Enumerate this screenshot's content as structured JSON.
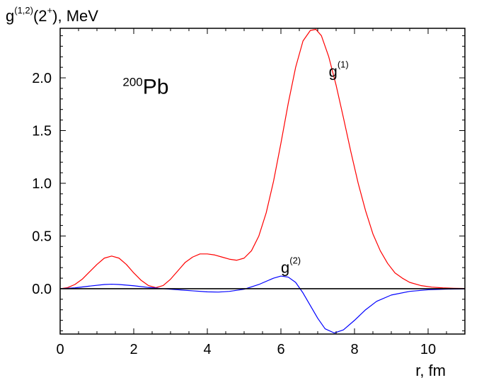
{
  "chart_data": {
    "type": "line",
    "ylabel": {
      "base": "g",
      "sup": "(1,2)",
      "mid": "(2",
      "sup2": "+",
      "tail": "), MeV"
    },
    "xlabel": "r, fm",
    "xlim": [
      0,
      11
    ],
    "ylim": [
      -0.43,
      2.47
    ],
    "x_ticks": [
      0,
      2,
      4,
      6,
      8,
      10
    ],
    "x_tick_labels": [
      "0",
      "2",
      "4",
      "6",
      "8",
      "10"
    ],
    "y_ticks": [
      0.0,
      0.5,
      1.0,
      1.5,
      2.0
    ],
    "y_tick_labels": [
      "0.0",
      "0.5",
      "1.0",
      "1.5",
      "2.0"
    ],
    "x_minor_step": 0.5,
    "y_minor_step": 0.1,
    "grid": false,
    "annotations": [
      {
        "id": "nucleus",
        "sup": "200",
        "text": "Pb",
        "x": 1.7,
        "y": 1.85
      },
      {
        "id": "g1-label",
        "text": "g",
        "sup": "(1)",
        "x": 7.3,
        "y": 2.01
      },
      {
        "id": "g2-label",
        "text": "g",
        "sup": "(2)",
        "x": 6.0,
        "y": 0.15
      }
    ],
    "series": [
      {
        "id": "g1",
        "color": "#ff0000",
        "x": [
          0,
          0.2,
          0.4,
          0.6,
          0.8,
          1.0,
          1.2,
          1.4,
          1.6,
          1.8,
          2.0,
          2.2,
          2.4,
          2.6,
          2.8,
          3.0,
          3.2,
          3.4,
          3.6,
          3.8,
          4.0,
          4.2,
          4.4,
          4.6,
          4.8,
          5.0,
          5.2,
          5.4,
          5.6,
          5.8,
          6.0,
          6.2,
          6.4,
          6.6,
          6.8,
          6.95,
          7.1,
          7.3,
          7.5,
          7.7,
          7.9,
          8.1,
          8.3,
          8.5,
          8.7,
          8.9,
          9.1,
          9.3,
          9.5,
          9.8,
          10.1,
          10.4,
          10.7,
          11.0
        ],
        "y": [
          0.0,
          0.01,
          0.04,
          0.09,
          0.16,
          0.23,
          0.29,
          0.31,
          0.29,
          0.23,
          0.15,
          0.08,
          0.03,
          0.01,
          0.03,
          0.09,
          0.17,
          0.25,
          0.3,
          0.33,
          0.33,
          0.32,
          0.3,
          0.28,
          0.27,
          0.29,
          0.36,
          0.5,
          0.72,
          1.02,
          1.38,
          1.76,
          2.1,
          2.35,
          2.45,
          2.46,
          2.4,
          2.2,
          1.93,
          1.62,
          1.3,
          1.0,
          0.74,
          0.52,
          0.36,
          0.24,
          0.15,
          0.1,
          0.06,
          0.03,
          0.015,
          0.008,
          0.004,
          0.002
        ]
      },
      {
        "id": "g2",
        "color": "#0000ff",
        "x": [
          0,
          0.4,
          0.8,
          1.2,
          1.4,
          1.6,
          2.0,
          2.4,
          2.8,
          3.2,
          3.6,
          4.0,
          4.3,
          4.6,
          5.0,
          5.4,
          5.8,
          6.0,
          6.2,
          6.4,
          6.6,
          6.8,
          7.0,
          7.2,
          7.45,
          7.7,
          8.0,
          8.3,
          8.6,
          9.0,
          9.5,
          10.0,
          10.5,
          11.0
        ],
        "y": [
          0.0,
          0.008,
          0.025,
          0.04,
          0.043,
          0.04,
          0.028,
          0.012,
          0.0,
          -0.01,
          -0.02,
          -0.03,
          -0.032,
          -0.025,
          -0.005,
          0.04,
          0.1,
          0.12,
          0.11,
          0.06,
          -0.04,
          -0.16,
          -0.28,
          -0.38,
          -0.42,
          -0.39,
          -0.3,
          -0.2,
          -0.12,
          -0.06,
          -0.025,
          -0.01,
          -0.004,
          -0.001
        ]
      },
      {
        "id": "zero",
        "color": "#000000",
        "x": [
          0,
          11
        ],
        "y": [
          0,
          0
        ]
      }
    ]
  }
}
